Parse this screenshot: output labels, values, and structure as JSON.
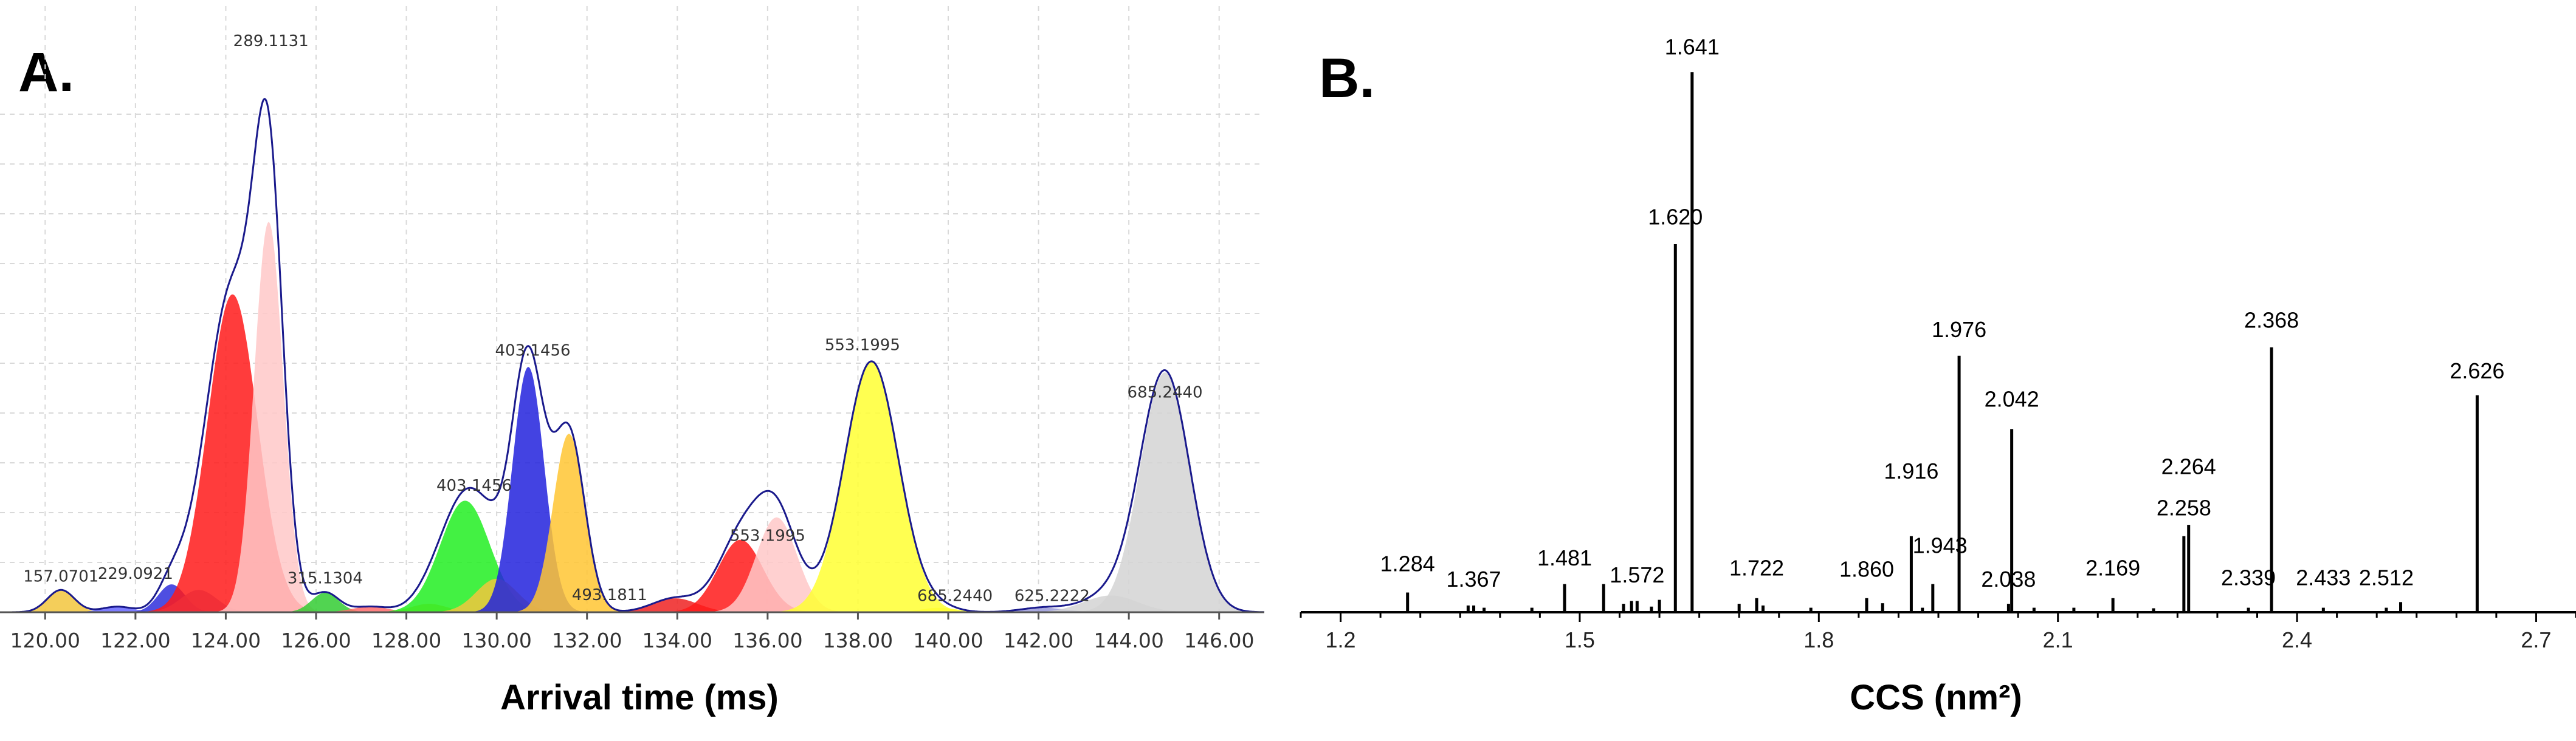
{
  "chart_data": [
    {
      "panel": "A.",
      "type": "area",
      "xlabel": "Arrival time (ms)",
      "ylabel": "",
      "xlim": [
        119.0,
        147.0
      ],
      "ylim": [
        0,
        100
      ],
      "grid": true,
      "legend": "none",
      "x_ticks": [
        120,
        122,
        124,
        126,
        128,
        130,
        132,
        134,
        136,
        138,
        140,
        142,
        144,
        146
      ],
      "x_tick_labels": [
        "120.00",
        "122.00",
        "124.00",
        "126.00",
        "128.00",
        "130.00",
        "132.00",
        "134.00",
        "136.00",
        "138.00",
        "140.00",
        "142.00",
        "144.00",
        "146.00"
      ],
      "peaks": [
        {
          "center": 120.35,
          "width": 0.3,
          "height": 4,
          "color": "#f2c53d"
        },
        {
          "center": 121.6,
          "width": 0.35,
          "height": 1,
          "color": "#6666ff"
        },
        {
          "center": 122.8,
          "width": 0.3,
          "height": 5,
          "color": "#2f2fdc"
        },
        {
          "center": 123.4,
          "width": 0.4,
          "height": 4,
          "color": "#9a9ad8"
        },
        {
          "center": 124.15,
          "width": 0.55,
          "height": 57,
          "color": "#ff1a1a"
        },
        {
          "center": 124.95,
          "width": 0.32,
          "height": 70,
          "color": "#ffc8c8"
        },
        {
          "center": 126.2,
          "width": 0.3,
          "height": 3.5,
          "color": "#33cc33"
        },
        {
          "center": 127.2,
          "width": 0.4,
          "height": 1,
          "color": "#ff6b6b"
        },
        {
          "center": 128.5,
          "width": 0.4,
          "height": 1.5,
          "color": "#f2c53d"
        },
        {
          "center": 129.3,
          "width": 0.55,
          "height": 20,
          "color": "#22ee22"
        },
        {
          "center": 130.0,
          "width": 0.45,
          "height": 6,
          "color": "#f2c53d"
        },
        {
          "center": 130.7,
          "width": 0.35,
          "height": 44,
          "color": "#2222dd"
        },
        {
          "center": 131.6,
          "width": 0.35,
          "height": 32,
          "color": "#ffc533"
        },
        {
          "center": 133.95,
          "width": 0.5,
          "height": 2.5,
          "color": "#ee2222"
        },
        {
          "center": 135.4,
          "width": 0.5,
          "height": 13,
          "color": "#ff1a1a"
        },
        {
          "center": 136.2,
          "width": 0.45,
          "height": 17,
          "color": "#ffc8c8"
        },
        {
          "center": 138.3,
          "width": 0.6,
          "height": 45,
          "color": "#ffff33"
        },
        {
          "center": 139.8,
          "width": 0.4,
          "height": 0.8,
          "color": "#ffff33"
        },
        {
          "center": 142.1,
          "width": 0.5,
          "height": 0.8,
          "color": "#9a9ad8"
        },
        {
          "center": 143.6,
          "width": 0.6,
          "height": 3,
          "color": "#d3d3d3"
        },
        {
          "center": 144.8,
          "width": 0.55,
          "height": 43,
          "color": "#d3d3d3"
        }
      ],
      "annotations": [
        {
          "text": "157.0701",
          "x": 120.35,
          "y": 5.5
        },
        {
          "text": "229.0921",
          "x": 122.0,
          "y": 6.0
        },
        {
          "text": "289.1131",
          "x": 125.0,
          "y": 101.5
        },
        {
          "text": "315.1304",
          "x": 126.2,
          "y": 5.2
        },
        {
          "text": "403.1456",
          "x": 129.5,
          "y": 21.8
        },
        {
          "text": "403.1456",
          "x": 130.8,
          "y": 46.0
        },
        {
          "text": "493.1811",
          "x": 132.5,
          "y": 2.2
        },
        {
          "text": "553.1995",
          "x": 136.0,
          "y": 12.8
        },
        {
          "text": "553.1995",
          "x": 138.1,
          "y": 47.0
        },
        {
          "text": "685.2440",
          "x": 140.15,
          "y": 2.0
        },
        {
          "text": "625.2222",
          "x": 142.3,
          "y": 2.0
        },
        {
          "text": "685.2440",
          "x": 144.8,
          "y": 38.5
        }
      ]
    },
    {
      "panel": "B.",
      "type": "bar",
      "xlabel": "CCS (nm²)",
      "ylabel": "",
      "xlim": [
        1.15,
        2.75
      ],
      "ylim": [
        0,
        100
      ],
      "grid": false,
      "legend": "none",
      "x_ticks": [
        1.2,
        1.5,
        1.8,
        2.1,
        2.4,
        2.7
      ],
      "x_tick_labels": [
        "1.2",
        "1.5",
        "1.8",
        "2.1",
        "2.4",
        "2.7"
      ],
      "labeled_peaks": [
        {
          "x": 1.284,
          "label": "1.284",
          "height": 3.5
        },
        {
          "x": 1.367,
          "label": "1.367",
          "height": 1.2
        },
        {
          "x": 1.481,
          "label": "1.481",
          "height": 5.0
        },
        {
          "x": 1.572,
          "label": "1.572",
          "height": 2.0
        },
        {
          "x": 1.62,
          "label": "1.620",
          "height": 65.3
        },
        {
          "x": 1.641,
          "label": "1.641",
          "height": 95.8
        },
        {
          "x": 1.722,
          "label": "1.722",
          "height": 2.5
        },
        {
          "x": 1.86,
          "label": "1.860",
          "height": 2.5
        },
        {
          "x": 1.916,
          "label": "1.916",
          "height": 13.5
        },
        {
          "x": 1.943,
          "label": "1.943",
          "height": 5.0
        },
        {
          "x": 1.976,
          "label": "1.976",
          "height": 45.5
        },
        {
          "x": 2.038,
          "label": "2.038",
          "height": 1.5
        },
        {
          "x": 2.042,
          "label": "2.042",
          "height": 32.5
        },
        {
          "x": 2.169,
          "label": "2.169",
          "height": 2.5
        },
        {
          "x": 2.258,
          "label": "2.258",
          "height": 13.5
        },
        {
          "x": 2.264,
          "label": "2.264",
          "height": 15.5
        },
        {
          "x": 2.339,
          "label": "2.339",
          "height": 0.8
        },
        {
          "x": 2.368,
          "label": "2.368",
          "height": 47.0
        },
        {
          "x": 2.433,
          "label": "2.433",
          "height": 0.8
        },
        {
          "x": 2.512,
          "label": "2.512",
          "height": 0.8
        },
        {
          "x": 2.626,
          "label": "2.626",
          "height": 38.5
        }
      ],
      "minor_peaks": [
        {
          "x": 1.36,
          "height": 1.2
        },
        {
          "x": 1.38,
          "height": 0.8
        },
        {
          "x": 1.44,
          "height": 0.8
        },
        {
          "x": 1.53,
          "height": 5.0
        },
        {
          "x": 1.555,
          "height": 1.5
        },
        {
          "x": 1.565,
          "height": 2.0
        },
        {
          "x": 1.59,
          "height": 1.0
        },
        {
          "x": 1.6,
          "height": 2.2
        },
        {
          "x": 1.7,
          "height": 1.5
        },
        {
          "x": 1.73,
          "height": 1.2
        },
        {
          "x": 1.79,
          "height": 0.8
        },
        {
          "x": 1.88,
          "height": 1.6
        },
        {
          "x": 1.93,
          "height": 0.8
        },
        {
          "x": 2.07,
          "height": 0.8
        },
        {
          "x": 2.12,
          "height": 0.8
        },
        {
          "x": 2.22,
          "height": 0.7
        },
        {
          "x": 2.53,
          "height": 1.8
        }
      ],
      "label_positions": [
        {
          "label": "1.284",
          "x": 1.284,
          "y": 7.3
        },
        {
          "label": "1.367",
          "x": 1.367,
          "y": 4.5
        },
        {
          "label": "1.481",
          "x": 1.481,
          "y": 8.3
        },
        {
          "label": "1.572",
          "x": 1.572,
          "y": 5.3
        },
        {
          "label": "1.620",
          "x": 1.62,
          "y": 68.8
        },
        {
          "label": "1.641",
          "x": 1.641,
          "y": 99.0
        },
        {
          "label": "1.722",
          "x": 1.722,
          "y": 6.5
        },
        {
          "label": "1.860",
          "x": 1.86,
          "y": 6.3
        },
        {
          "label": "1.916",
          "x": 1.916,
          "y": 23.7
        },
        {
          "label": "1.943",
          "x": 1.952,
          "y": 10.5
        },
        {
          "label": "1.976",
          "x": 1.976,
          "y": 48.8
        },
        {
          "label": "2.038",
          "x": 2.038,
          "y": 4.5
        },
        {
          "label": "2.042",
          "x": 2.042,
          "y": 36.5
        },
        {
          "label": "2.169",
          "x": 2.169,
          "y": 6.5
        },
        {
          "label": "2.258",
          "x": 2.258,
          "y": 17.2
        },
        {
          "label": "2.264",
          "x": 2.264,
          "y": 24.5
        },
        {
          "label": "2.339",
          "x": 2.339,
          "y": 4.8
        },
        {
          "label": "2.368",
          "x": 2.368,
          "y": 50.5
        },
        {
          "label": "2.433",
          "x": 2.433,
          "y": 4.8
        },
        {
          "label": "2.512",
          "x": 2.512,
          "y": 4.8
        },
        {
          "label": "2.626",
          "x": 2.626,
          "y": 41.5
        }
      ]
    }
  ]
}
